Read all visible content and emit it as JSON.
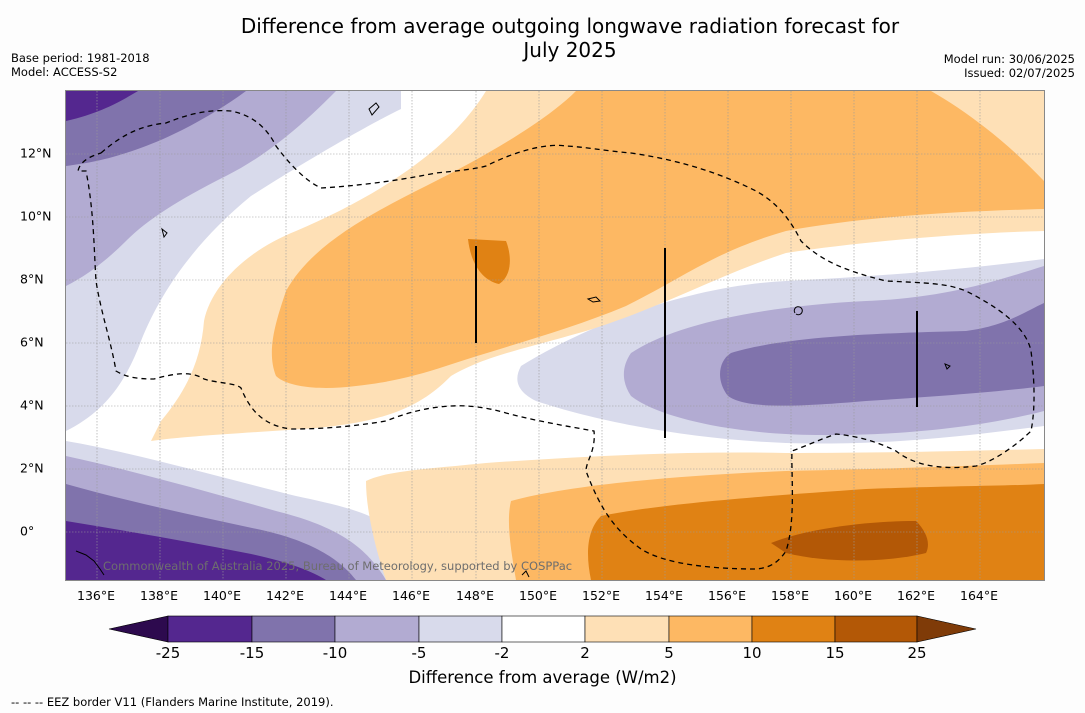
{
  "title": "Difference from average outgoing longwave radiation forecast for July 2025",
  "title_lines": [
    "Difference from average outgoing longwave radiation forecast for",
    "July 2025"
  ],
  "meta_left": [
    "Base period: 1981-2018",
    "Model: ACCESS-S2"
  ],
  "meta_right": [
    "Model run: 30/06/2025",
    "Issued: 02/07/2025"
  ],
  "copyright": "Commonwealth of Australia 2025, Bureau of Meteorology, supported by COSPPac",
  "footnote": "--  --  -- EEZ border V11 (Flanders Marine Institute, 2019).",
  "map": {
    "lon_labels": [
      "136°E",
      "138°E",
      "140°E",
      "142°E",
      "144°E",
      "146°E",
      "148°E",
      "150°E",
      "152°E",
      "154°E",
      "156°E",
      "158°E",
      "160°E",
      "162°E",
      "164°E"
    ],
    "lat_labels": [
      "12°N",
      "10°N",
      "8°N",
      "6°N",
      "4°N",
      "2°N",
      "0°"
    ]
  },
  "legend": {
    "title": "Difference from average (W/m2)",
    "tick_labels": [
      "-25",
      "-15",
      "-10",
      "-5",
      "-2",
      "2",
      "5",
      "10",
      "15",
      "25"
    ],
    "colors": {
      "below_-25": "#2d0a4e",
      "-25_-15": "#54278f",
      "-15_-10": "#8073ac",
      "-10_-5": "#b2abd2",
      "-5_-2": "#d8daeb",
      "-2_2": "#ffffff",
      "2_5": "#fee0b6",
      "5_10": "#fdb863",
      "10_15": "#e08214",
      "15_25": "#b35806",
      "above_25": "#7f3b08"
    }
  }
}
